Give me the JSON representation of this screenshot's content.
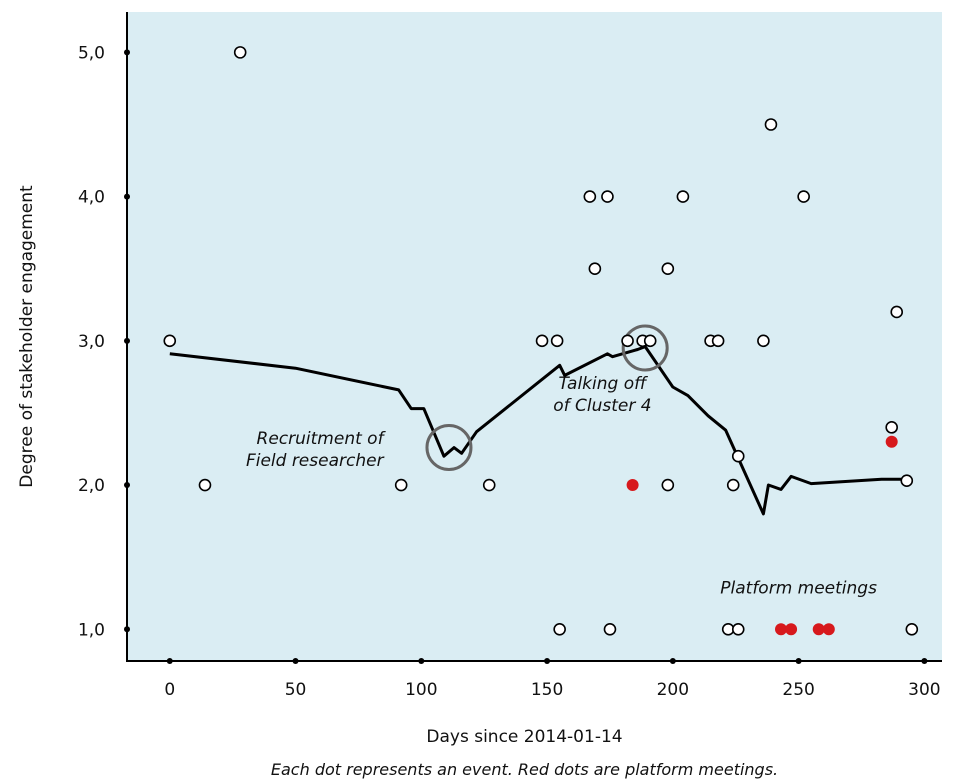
{
  "chart_data": {
    "type": "scatter",
    "xlabel": "Days since 2014-01-14",
    "ylabel": "Degree of stakeholder engagement",
    "caption": "Each dot represents an event. Red dots are platform meetings.",
    "xlim": [
      -17,
      307
    ],
    "ylim": [
      0.78,
      5.28
    ],
    "x_ticks": [
      0,
      50,
      100,
      150,
      200,
      250,
      300
    ],
    "x_tick_labels": [
      "0",
      "50",
      "100",
      "150",
      "200",
      "250",
      "300"
    ],
    "x_minor_dots": [
      0,
      50,
      100,
      150,
      200,
      250,
      300
    ],
    "y_ticks": [
      1,
      2,
      3,
      4,
      5
    ],
    "y_tick_labels": [
      "1,0",
      "2,0",
      "3,0",
      "4,0",
      "5,0"
    ],
    "grid": false,
    "colors": {
      "plot_background": "#daedf3",
      "event_fill": "#ffffff",
      "platform_meeting_fill": "#d7191c",
      "trend_line": "#000000",
      "highlight_circle": "#666666"
    },
    "series": [
      {
        "kind": "points",
        "marker": "open-circle",
        "points": [
          [
            0,
            3.0
          ],
          [
            14,
            2.0
          ],
          [
            28,
            5.0
          ],
          [
            92,
            2.0
          ],
          [
            127,
            2.0
          ],
          [
            148,
            3.0
          ],
          [
            154,
            3.0
          ],
          [
            155,
            1.0
          ],
          [
            167,
            4.0
          ],
          [
            169,
            3.5
          ],
          [
            174,
            4.0
          ],
          [
            175,
            1.0
          ],
          [
            182,
            3.0
          ],
          [
            188,
            3.0
          ],
          [
            191,
            3.0
          ],
          [
            198,
            2.0
          ],
          [
            198,
            3.5
          ],
          [
            204,
            4.0
          ],
          [
            215,
            3.0
          ],
          [
            218,
            3.0
          ],
          [
            222,
            1.0
          ],
          [
            224,
            2.0
          ],
          [
            226,
            1.0
          ],
          [
            226,
            2.2
          ],
          [
            236,
            3.0
          ],
          [
            239,
            4.5
          ],
          [
            252,
            4.0
          ],
          [
            287,
            2.4
          ],
          [
            289,
            3.2
          ],
          [
            293,
            2.03
          ],
          [
            295,
            1.0
          ]
        ]
      },
      {
        "kind": "points",
        "marker": "filled-circle-red",
        "points": [
          [
            184,
            2.0
          ],
          [
            243,
            1.0
          ],
          [
            247,
            1.0
          ],
          [
            258,
            1.0
          ],
          [
            262,
            1.0
          ],
          [
            287,
            2.3
          ]
        ]
      },
      {
        "kind": "line",
        "points": [
          [
            0,
            2.91
          ],
          [
            50,
            2.81
          ],
          [
            91,
            2.66
          ],
          [
            96,
            2.53
          ],
          [
            101,
            2.53
          ],
          [
            109,
            2.2
          ],
          [
            113,
            2.26
          ],
          [
            116,
            2.22
          ],
          [
            122,
            2.37
          ],
          [
            155,
            2.83
          ],
          [
            157,
            2.76
          ],
          [
            174,
            2.91
          ],
          [
            176,
            2.89
          ],
          [
            186,
            2.94
          ],
          [
            189,
            2.96
          ],
          [
            200,
            2.68
          ],
          [
            206,
            2.62
          ],
          [
            214,
            2.48
          ],
          [
            221,
            2.38
          ],
          [
            236,
            1.8
          ],
          [
            238,
            2.0
          ],
          [
            243,
            1.97
          ],
          [
            247,
            2.06
          ],
          [
            255,
            2.01
          ],
          [
            283,
            2.04
          ],
          [
            293,
            2.04
          ]
        ]
      }
    ],
    "highlight_circles": [
      {
        "x": 111,
        "y": 2.26,
        "r": 17
      },
      {
        "x": 189,
        "y": 2.95,
        "r": 17
      }
    ],
    "annotations": [
      {
        "lines": [
          "Recruitment of",
          "Field researcher"
        ],
        "x": 85,
        "y": 2.25,
        "anchor": "end"
      },
      {
        "lines": [
          "Talking off",
          "of Cluster 4"
        ],
        "x": 172,
        "y": 2.63,
        "anchor": "middle"
      },
      {
        "lines": [
          "Platform meetings"
        ],
        "x": 250,
        "y": 1.29,
        "anchor": "middle"
      }
    ]
  }
}
